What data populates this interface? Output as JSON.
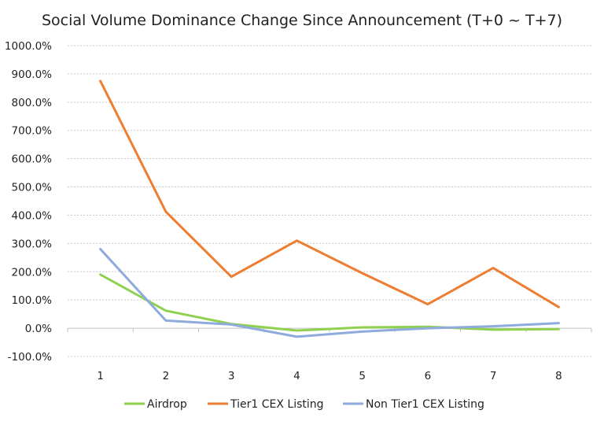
{
  "chart_data": {
    "type": "line",
    "title": "Social Volume Dominance Change Since Announcement (T+0 ~ T+7)",
    "xlabel": "",
    "ylabel": "",
    "categories": [
      "1",
      "2",
      "3",
      "4",
      "5",
      "6",
      "7",
      "8"
    ],
    "y_ticks": [
      "1000.0%",
      "900.0%",
      "800.0%",
      "700.0%",
      "600.0%",
      "500.0%",
      "400.0%",
      "300.0%",
      "200.0%",
      "100.0%",
      "0.0%",
      "-100.0%"
    ],
    "y_tick_values": [
      1000,
      900,
      800,
      700,
      600,
      500,
      400,
      300,
      200,
      100,
      0,
      -100
    ],
    "ylim": [
      -100,
      1000
    ],
    "grid": true,
    "legend_position": "bottom",
    "series": [
      {
        "name": "Airdrop",
        "color": "#8fd14f",
        "values": [
          190,
          62,
          15,
          -8,
          3,
          5,
          -5,
          -3
        ]
      },
      {
        "name": "Tier1 CEX Listing",
        "color": "#ed7d31",
        "values": [
          875,
          412,
          182,
          310,
          195,
          85,
          213,
          75
        ]
      },
      {
        "name": "Non Tier1 CEX Listing",
        "color": "#8faadc",
        "values": [
          280,
          27,
          13,
          -30,
          -12,
          0,
          7,
          18
        ]
      }
    ]
  }
}
